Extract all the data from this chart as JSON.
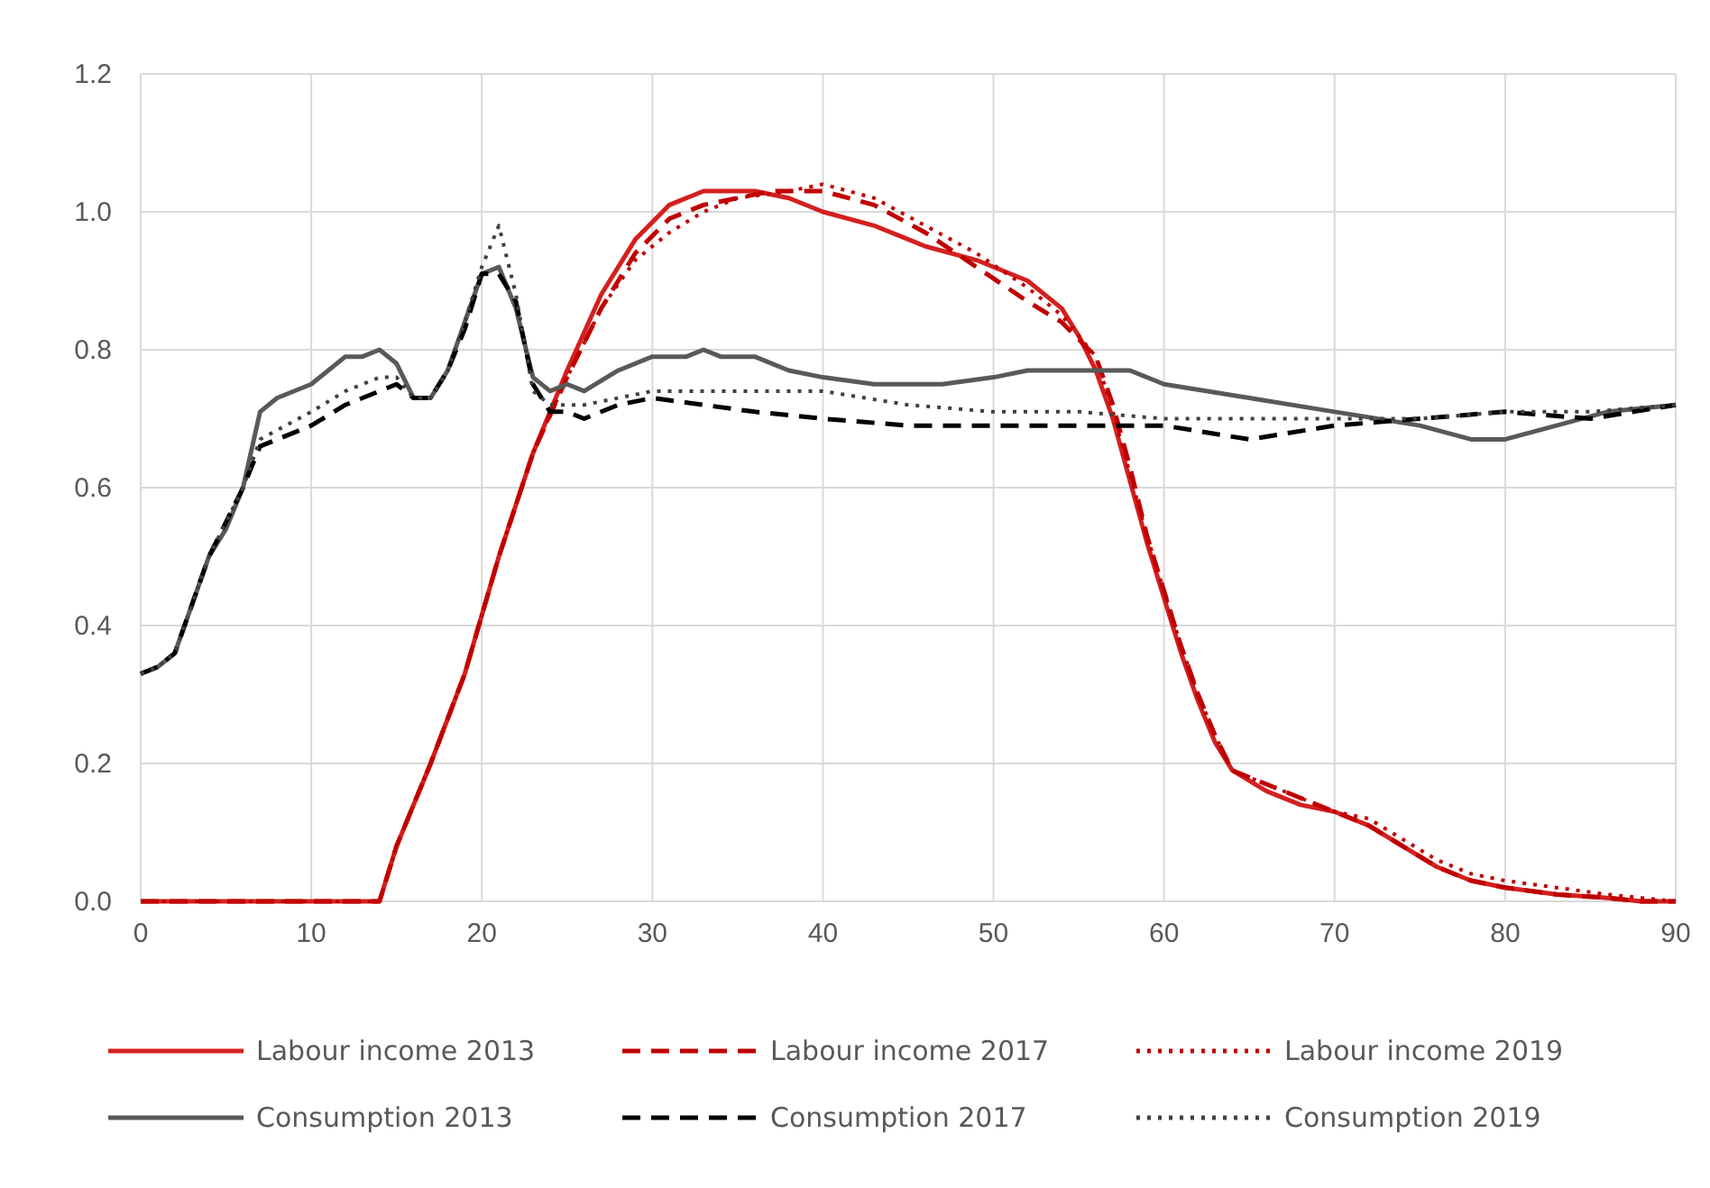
{
  "chart_data": {
    "type": "line",
    "xlim": [
      0,
      90
    ],
    "xticks": [
      0,
      10,
      20,
      30,
      40,
      50,
      60,
      70,
      80,
      90
    ],
    "ylim": [
      0,
      1.2
    ],
    "yticks": [
      {
        "value": 0,
        "label": "0.0"
      },
      {
        "value": 0.2,
        "label": "0.2"
      },
      {
        "value": 0.4,
        "label": "0.4"
      },
      {
        "value": 0.6,
        "label": "0.6"
      },
      {
        "value": 0.8,
        "label": "0.8"
      },
      {
        "value": 1,
        "label": "1.0"
      },
      {
        "value": 1.2,
        "label": "1.2"
      }
    ],
    "grid": true,
    "legend": "bottom",
    "marker": "none",
    "series": [
      {
        "name": "Labour income 2013",
        "color": "#d42020",
        "line_style": "solid",
        "x": [
          0,
          14,
          15,
          17,
          19,
          21,
          23,
          25,
          27,
          29,
          31,
          33,
          36,
          38,
          40,
          43,
          46,
          49,
          52,
          54,
          55,
          56,
          57,
          58,
          59,
          60,
          61,
          62,
          63,
          64,
          66,
          68,
          70,
          72,
          74,
          76,
          78,
          80,
          83,
          86,
          88,
          90
        ],
        "values": [
          0,
          0,
          0.08,
          0.2,
          0.33,
          0.5,
          0.65,
          0.77,
          0.88,
          0.96,
          1.01,
          1.03,
          1.03,
          1.02,
          1.0,
          0.98,
          0.95,
          0.93,
          0.9,
          0.86,
          0.82,
          0.77,
          0.7,
          0.61,
          0.52,
          0.44,
          0.36,
          0.29,
          0.23,
          0.19,
          0.16,
          0.14,
          0.13,
          0.11,
          0.08,
          0.05,
          0.03,
          0.02,
          0.01,
          0.005,
          0,
          0
        ]
      },
      {
        "name": "Labour income 2017",
        "color": "#c00000",
        "line_style": "dashed",
        "x": [
          0,
          14,
          15,
          17,
          19,
          21,
          23,
          25,
          27,
          29,
          31,
          33,
          35,
          37,
          40,
          43,
          46,
          49,
          52,
          54,
          56,
          57,
          58,
          59,
          60,
          61,
          62,
          63,
          64,
          66,
          68,
          70,
          72,
          74,
          76,
          78,
          80,
          83,
          86,
          88,
          90
        ],
        "values": [
          0,
          0,
          0.08,
          0.2,
          0.33,
          0.5,
          0.65,
          0.76,
          0.86,
          0.94,
          0.99,
          1.01,
          1.02,
          1.03,
          1.03,
          1.01,
          0.97,
          0.92,
          0.87,
          0.84,
          0.79,
          0.72,
          0.63,
          0.53,
          0.45,
          0.37,
          0.3,
          0.24,
          0.19,
          0.17,
          0.15,
          0.13,
          0.11,
          0.08,
          0.05,
          0.03,
          0.02,
          0.01,
          0.005,
          0,
          0
        ]
      },
      {
        "name": "Labour income 2019",
        "color": "#c00000",
        "line_style": "dotted",
        "x": [
          0,
          14,
          15,
          17,
          19,
          21,
          23,
          25,
          27,
          29,
          31,
          33,
          35,
          38,
          40,
          43,
          46,
          49,
          52,
          54,
          56,
          57,
          58,
          59,
          60,
          61,
          62,
          63,
          64,
          66,
          68,
          70,
          72,
          74,
          76,
          78,
          80,
          83,
          86,
          88,
          90
        ],
        "values": [
          0,
          0,
          0.08,
          0.2,
          0.33,
          0.5,
          0.65,
          0.76,
          0.86,
          0.93,
          0.97,
          1.0,
          1.02,
          1.03,
          1.04,
          1.02,
          0.98,
          0.94,
          0.89,
          0.85,
          0.79,
          0.71,
          0.62,
          0.53,
          0.45,
          0.37,
          0.3,
          0.24,
          0.19,
          0.17,
          0.15,
          0.13,
          0.12,
          0.09,
          0.06,
          0.04,
          0.03,
          0.02,
          0.01,
          0.005,
          0
        ]
      },
      {
        "name": "Consumption 2013",
        "color": "#595959",
        "line_style": "solid",
        "x": [
          0,
          1,
          2,
          3,
          4,
          5,
          6,
          7,
          8,
          10,
          12,
          13,
          14,
          15,
          16,
          17,
          18,
          19,
          20,
          21,
          22,
          23,
          24,
          25,
          26,
          28,
          30,
          32,
          33,
          34,
          36,
          38,
          40,
          43,
          45,
          47,
          50,
          52,
          55,
          57,
          58,
          60,
          65,
          70,
          75,
          78,
          80,
          83,
          86,
          90
        ],
        "values": [
          0.33,
          0.34,
          0.36,
          0.43,
          0.5,
          0.54,
          0.6,
          0.71,
          0.73,
          0.75,
          0.79,
          0.79,
          0.8,
          0.78,
          0.73,
          0.73,
          0.77,
          0.84,
          0.91,
          0.92,
          0.86,
          0.76,
          0.74,
          0.75,
          0.74,
          0.77,
          0.79,
          0.79,
          0.8,
          0.79,
          0.79,
          0.77,
          0.76,
          0.75,
          0.75,
          0.75,
          0.76,
          0.77,
          0.77,
          0.77,
          0.77,
          0.75,
          0.73,
          0.71,
          0.69,
          0.67,
          0.67,
          0.69,
          0.71,
          0.72
        ]
      },
      {
        "name": "Consumption 2017",
        "color": "#000000",
        "line_style": "dashed",
        "x": [
          0,
          1,
          2,
          3,
          4,
          5,
          6,
          7,
          10,
          12,
          14,
          15,
          16,
          17,
          18,
          19,
          20,
          21,
          22,
          23,
          24,
          25,
          26,
          28,
          30,
          33,
          36,
          40,
          45,
          50,
          55,
          60,
          65,
          70,
          75,
          80,
          85,
          90
        ],
        "values": [
          0.33,
          0.34,
          0.36,
          0.43,
          0.5,
          0.55,
          0.6,
          0.66,
          0.69,
          0.72,
          0.74,
          0.75,
          0.73,
          0.73,
          0.77,
          0.83,
          0.91,
          0.91,
          0.87,
          0.75,
          0.71,
          0.71,
          0.7,
          0.72,
          0.73,
          0.72,
          0.71,
          0.7,
          0.69,
          0.69,
          0.69,
          0.69,
          0.67,
          0.69,
          0.7,
          0.71,
          0.7,
          0.72
        ]
      },
      {
        "name": "Consumption 2019",
        "color": "#404040",
        "line_style": "dotted",
        "x": [
          0,
          1,
          2,
          3,
          4,
          5,
          6,
          7,
          10,
          12,
          14,
          15,
          16,
          17,
          18,
          19,
          20,
          21,
          22,
          23,
          24,
          26,
          28,
          30,
          33,
          36,
          40,
          45,
          50,
          55,
          60,
          65,
          70,
          75,
          80,
          85,
          90
        ],
        "values": [
          0.33,
          0.34,
          0.36,
          0.43,
          0.5,
          0.55,
          0.6,
          0.67,
          0.71,
          0.74,
          0.76,
          0.76,
          0.73,
          0.73,
          0.77,
          0.84,
          0.92,
          0.98,
          0.88,
          0.74,
          0.72,
          0.72,
          0.73,
          0.74,
          0.74,
          0.74,
          0.74,
          0.72,
          0.71,
          0.71,
          0.7,
          0.7,
          0.7,
          0.7,
          0.71,
          0.71,
          0.72
        ]
      }
    ]
  }
}
